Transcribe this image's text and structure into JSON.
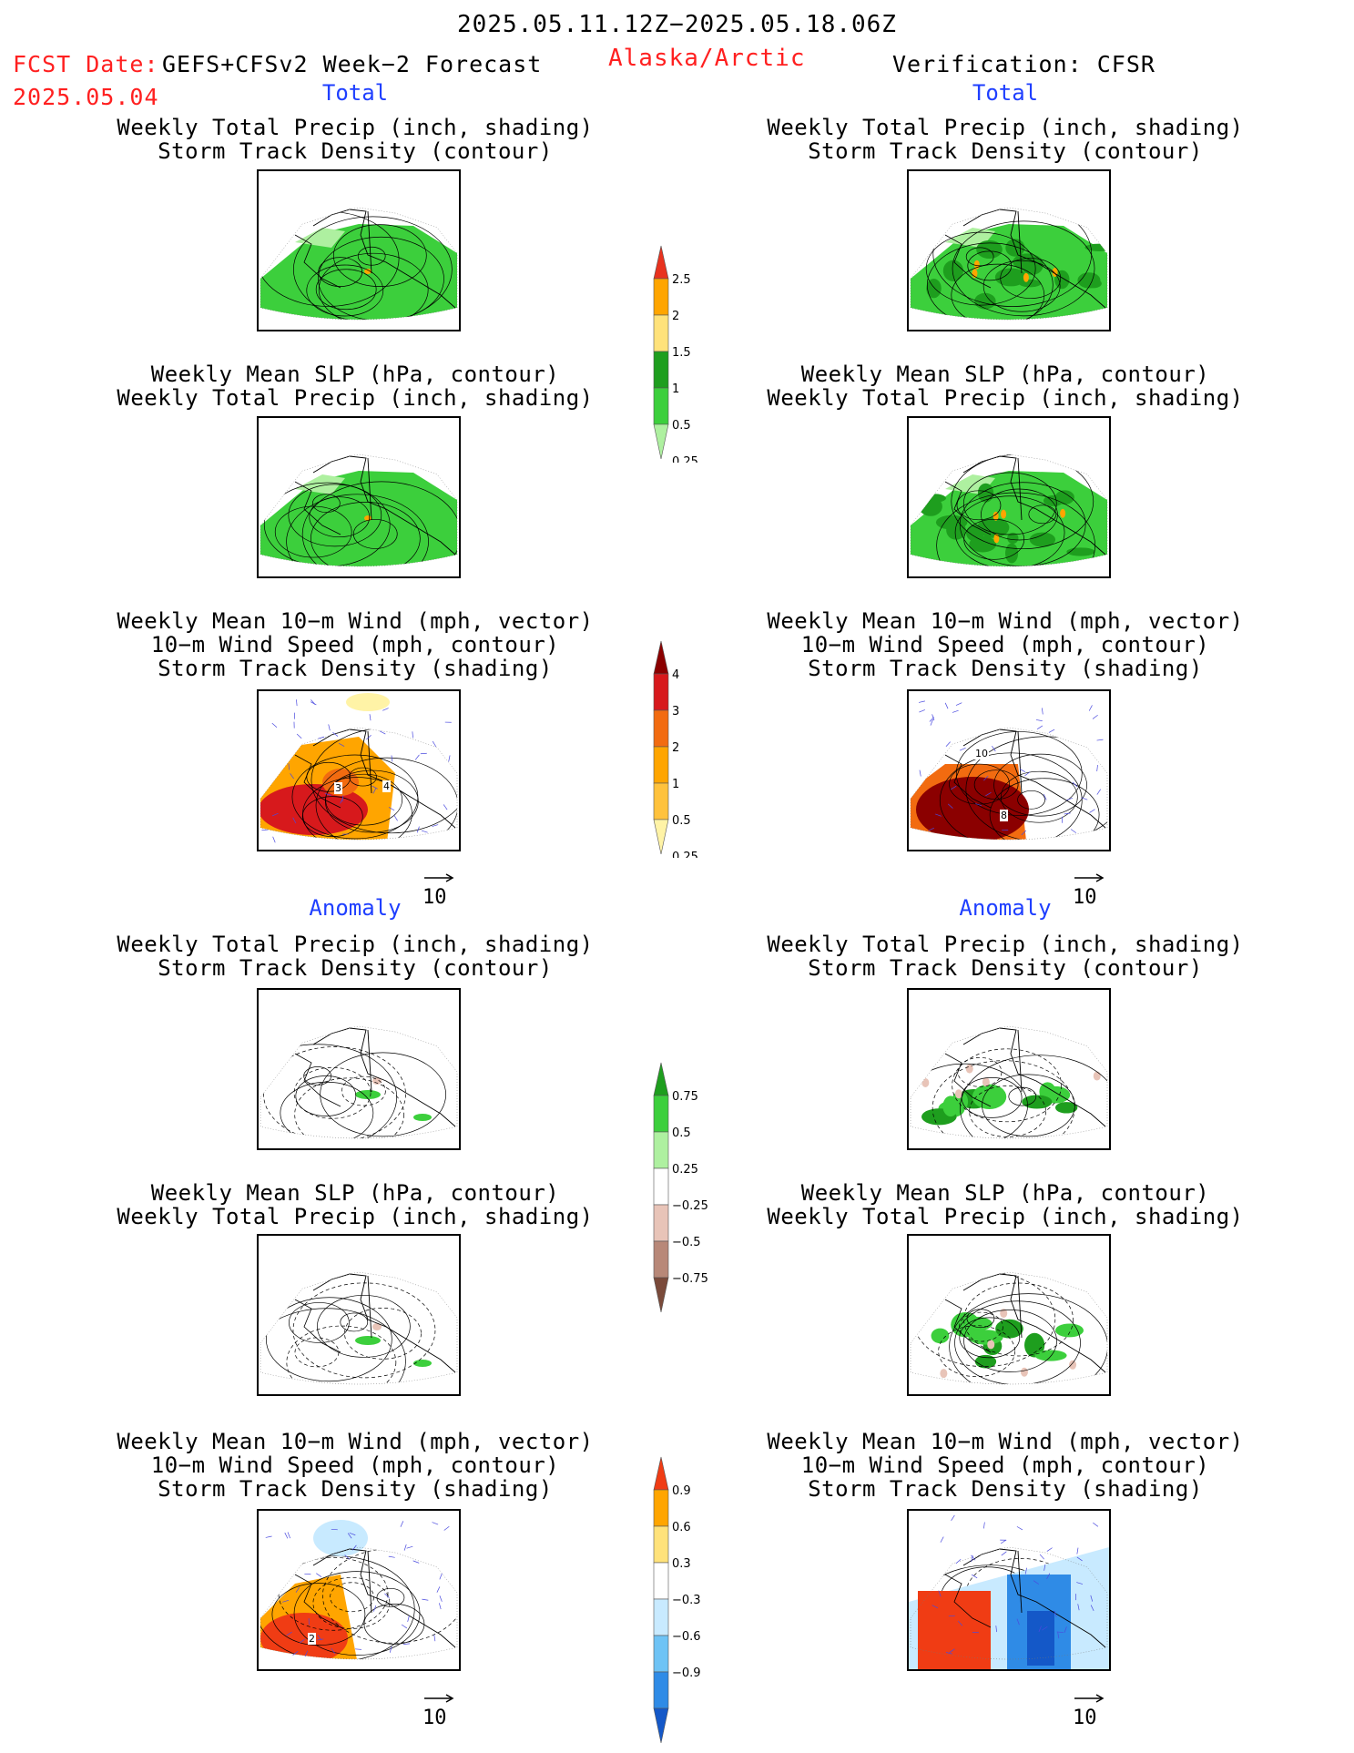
{
  "header": {
    "period": "2025.05.11.12Z−2025.05.18.06Z",
    "fcst_label": "FCST Date:",
    "fcst_model": "GEFS+CFSv2 Week−2 Forecast",
    "fcst_date": "2025.05.04",
    "region": "Alaska/Arctic",
    "verification": "Verification: CFSR"
  },
  "sections": {
    "total": "Total",
    "anomaly": "Anomaly"
  },
  "captions": {
    "precip_track": [
      "Weekly Total Precip (inch, shading)",
      "Storm Track Density (contour)"
    ],
    "slp_precip": [
      "Weekly Mean SLP (hPa, contour)",
      "Weekly Total Precip (inch, shading)"
    ],
    "wind_track": [
      "Weekly Mean 10−m Wind (mph, vector)",
      "10−m Wind Speed (mph, contour)",
      "Storm Track Density (shading)"
    ]
  },
  "vector_ref": "10",
  "colorbars": {
    "precip_total": {
      "labels": [
        "2.5",
        "2",
        "1.5",
        "1",
        "0.5",
        "0.25"
      ],
      "colors": [
        "#e8321e",
        "#ffa500",
        "#ffe27a",
        "#1e9e1e",
        "#3ccf3c",
        "#aef0a0"
      ]
    },
    "track_total": {
      "labels": [
        "4",
        "3",
        "2",
        "1",
        "0.5",
        "0.25"
      ],
      "colors": [
        "#8b0000",
        "#d7191c",
        "#f26b10",
        "#ffa500",
        "#ffc23c",
        "#fff3a6"
      ]
    },
    "precip_anom": {
      "labels": [
        "0.75",
        "0.5",
        "0.25",
        "−0.25",
        "−0.5",
        "−0.75"
      ],
      "colors": [
        "#1e9e1e",
        "#3ccf3c",
        "#aef0a0",
        "#ffffff",
        "#e8c4b8",
        "#b88878",
        "#7a4a3a"
      ]
    },
    "track_anom": {
      "labels": [
        "0.9",
        "0.6",
        "0.3",
        "−0.3",
        "−0.6",
        "−0.9"
      ],
      "colors": [
        "#f03c14",
        "#ffa500",
        "#ffe27a",
        "#ffffff",
        "#c8eaff",
        "#6ec3f5",
        "#2f8be6",
        "#1458c8"
      ]
    }
  },
  "map_labels": {
    "fcst_total_wind": [
      "3",
      "4"
    ],
    "obs_total_wind": [
      "10",
      "8"
    ],
    "fcst_anom_wind": [
      "2"
    ]
  }
}
